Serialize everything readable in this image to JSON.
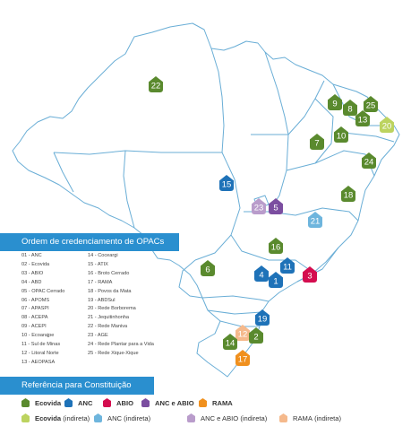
{
  "list_title": "Ordem de credenciamento de OPACs",
  "list_left": [
    "01 - ANC",
    "02 - Ecovida",
    "03 - ABIO",
    "04 - ABD",
    "05 - OPAC Cerrado",
    "06 - APOMS",
    "07 - APASPI",
    "08 - ACEPA",
    "09 - ACEPI",
    "10 - Ecoarajpe",
    "11 - Sul de Minas",
    "12 - Litoral Norte",
    "13 - AEOPASA"
  ],
  "list_right": [
    "14 - Coceargi",
    "15 - ATIX",
    "16 - Broto Cerrado",
    "17 - RAMA",
    "18 - Povos da Mata",
    "19 - ABDSul",
    "20 - Rede Borborema",
    "21 - Jequitinhonha",
    "22 - Rede Maniva",
    "23 - AGE",
    "24 - Rede Plantar para a Vida",
    "25 - Rede Xique-Xique"
  ],
  "legend_title": "Referência para Constituição",
  "legend": [
    {
      "label": "Ecovida",
      "suffix": "",
      "color": "#5a8a2e",
      "bold": true
    },
    {
      "label": "ANC",
      "suffix": "",
      "color": "#1e72b8",
      "bold": true
    },
    {
      "label": "ABIO",
      "suffix": "",
      "color": "#d40d4f",
      "bold": true
    },
    {
      "label": "ANC e ABIO",
      "suffix": "",
      "color": "#7b4ea0",
      "bold": true
    },
    {
      "label": "RAMA",
      "suffix": "",
      "color": "#f0901e",
      "bold": true
    },
    {
      "label": "Ecovida",
      "suffix": "(indireta)",
      "color": "#bcd35f",
      "bold": true
    },
    {
      "label": "ANC",
      "suffix": "(indireta)",
      "color": "#6eb5dd",
      "bold": false
    },
    {
      "label": "ANC e ABIO",
      "suffix": "(indireta)",
      "color": "#b99ccb",
      "bold": false
    },
    {
      "label": "RAMA",
      "suffix": "(indireta)",
      "color": "#f5b98c",
      "bold": false
    }
  ],
  "colors": {
    "border": "#6aaed6",
    "banner": "#2a8fcf"
  },
  "markers": [
    {
      "n": "22",
      "cat": "Ecovida"
    },
    {
      "n": "9",
      "cat": "Ecovida"
    },
    {
      "n": "8",
      "cat": "Ecovida"
    },
    {
      "n": "25",
      "cat": "Ecovida"
    },
    {
      "n": "13",
      "cat": "Ecovida"
    },
    {
      "n": "20",
      "cat": "Ecovida (indireta)"
    },
    {
      "n": "7",
      "cat": "Ecovida"
    },
    {
      "n": "10",
      "cat": "Ecovida"
    },
    {
      "n": "24",
      "cat": "Ecovida"
    },
    {
      "n": "18",
      "cat": "Ecovida"
    },
    {
      "n": "15",
      "cat": "ANC"
    },
    {
      "n": "23",
      "cat": "ANC e ABIO (indireta)"
    },
    {
      "n": "5",
      "cat": "ANC e ABIO"
    },
    {
      "n": "21",
      "cat": "ANC (indireta)"
    },
    {
      "n": "16",
      "cat": "Ecovida"
    },
    {
      "n": "6",
      "cat": "Ecovida"
    },
    {
      "n": "11",
      "cat": "ANC"
    },
    {
      "n": "4",
      "cat": "ANC"
    },
    {
      "n": "1",
      "cat": "ANC"
    },
    {
      "n": "3",
      "cat": "ABIO"
    },
    {
      "n": "19",
      "cat": "ANC"
    },
    {
      "n": "12",
      "cat": "RAMA (indireta)"
    },
    {
      "n": "14",
      "cat": "Ecovida"
    },
    {
      "n": "2",
      "cat": "Ecovida"
    },
    {
      "n": "17",
      "cat": "RAMA"
    }
  ]
}
